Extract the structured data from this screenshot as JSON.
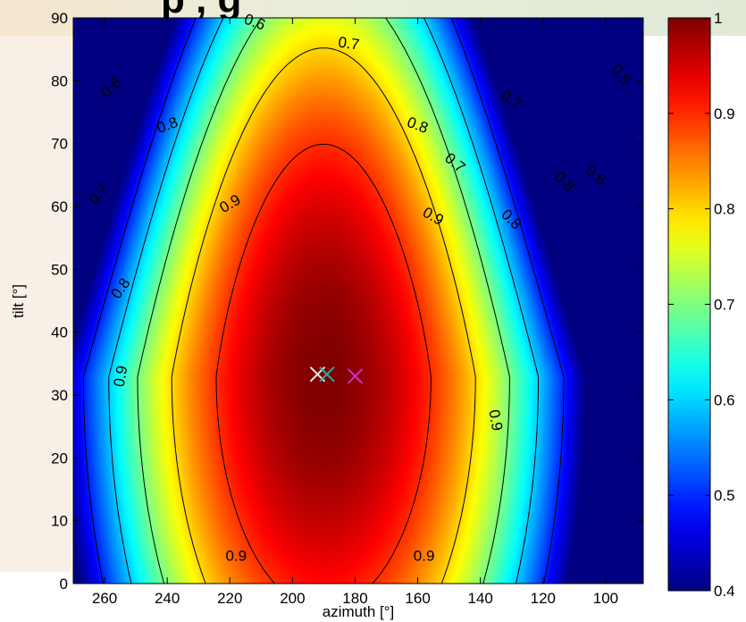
{
  "figure": {
    "title_fragment": "p , g"
  },
  "chart_data": {
    "type": "heatmap",
    "title": "",
    "xlabel": "azimuth [°]",
    "ylabel": "tilt [°]",
    "xlim": [
      270,
      88
    ],
    "ylim": [
      0,
      90
    ],
    "x_reversed": true,
    "x_ticks": [
      260,
      240,
      220,
      200,
      180,
      160,
      140,
      120,
      100
    ],
    "y_ticks": [
      0,
      10,
      20,
      30,
      40,
      50,
      60,
      70,
      80,
      90
    ],
    "colormap": "jet",
    "color_range": [
      0.4,
      1.0
    ],
    "colorbar_ticks": [
      0.4,
      0.5,
      0.6,
      0.7,
      0.8,
      0.9,
      1
    ],
    "optimum": {
      "azimuth": 190,
      "tilt": 33
    },
    "contour_levels": [
      0.5,
      0.6,
      0.7,
      0.8,
      0.9
    ],
    "contour_labels": [
      "0.9",
      "0.9",
      "0.9",
      "0.9",
      "0.9",
      "0.9",
      "0.8",
      "0.8",
      "0.8",
      "0.8",
      "0.8",
      "0.7",
      "0.7",
      "0.7",
      "0.7",
      "0.6",
      "0.6",
      "0.6",
      "0.5"
    ],
    "markers": [
      {
        "azimuth": 192,
        "tilt": 33.3,
        "color": "#e8e8e8",
        "symbol": "x"
      },
      {
        "azimuth": 189,
        "tilt": 33.3,
        "color": "#20b2aa",
        "symbol": "x"
      },
      {
        "azimuth": 180,
        "tilt": 33.0,
        "color": "#cc33cc",
        "symbol": "x"
      }
    ]
  }
}
